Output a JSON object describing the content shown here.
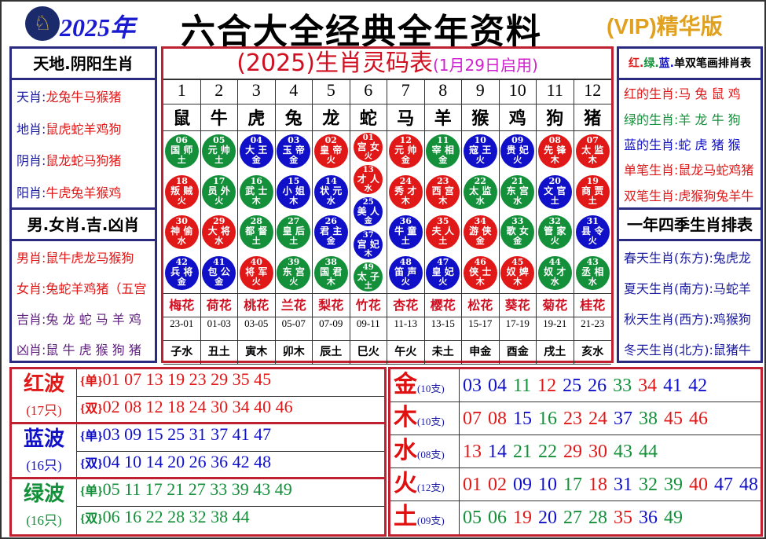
{
  "header": {
    "year": "2025年",
    "title": "六合大全经典全年资料",
    "vip": "(VIP)精华版",
    "logo_icon": "horse-emblem-icon"
  },
  "colors": {
    "red": "#e01818",
    "blue": "#1010c8",
    "green": "#14903a",
    "navy": "#1a1aa0",
    "purple": "#602080"
  },
  "left": {
    "h1": "天地.阴阳生肖",
    "rows1": [
      {
        "k": "天肖",
        "v": "龙兔牛马猴猪"
      },
      {
        "k": "地肖",
        "v": "鼠虎蛇羊鸡狗"
      },
      {
        "k": "阴肖",
        "v": "鼠龙蛇马狗猪"
      },
      {
        "k": "阳肖",
        "v": "牛虎兔羊猴鸡"
      }
    ],
    "h2": "男.女肖.吉.凶肖",
    "rows2": [
      {
        "k": "男肖",
        "v": "鼠牛虎龙马猴狗"
      },
      {
        "k": "女肖",
        "v": "兔蛇羊鸡猪（五宫"
      },
      {
        "k": "吉肖",
        "v": "兔 龙 蛇 马 羊 鸡"
      },
      {
        "k": "凶肖",
        "v": "鼠 牛 虎 猴 狗 猪"
      }
    ]
  },
  "right": {
    "h1": [
      "红",
      "绿",
      "蓝",
      "单双笔画排肖表"
    ],
    "rows1": [
      {
        "k": "红的生肖",
        "v": "马 兔 鼠 鸡",
        "c": "red"
      },
      {
        "k": "绿的生肖",
        "v": "羊 龙 牛 狗",
        "c": "green"
      },
      {
        "k": "蓝的生肖",
        "v": "蛇 虎 猪 猴",
        "c": "blue"
      },
      {
        "k": "单笔生肖",
        "v": "鼠龙马蛇鸡猪",
        "c": "red"
      },
      {
        "k": "双笔生肖",
        "v": "虎猴狗兔羊牛",
        "c": "red"
      }
    ],
    "h2": "一年四季生肖排表",
    "rows2": [
      {
        "k": "春天生肖(东方)",
        "v": "兔虎龙"
      },
      {
        "k": "夏天生肖(南方)",
        "v": "马蛇羊"
      },
      {
        "k": "秋天生肖(西方)",
        "v": "鸡猴狗"
      },
      {
        "k": "冬天生肖(北方)",
        "v": "鼠猪牛"
      }
    ]
  },
  "table": {
    "title": "(2025)生肖灵码表",
    "subtitle": "(1月29日启用)",
    "nums": [
      "1",
      "2",
      "3",
      "4",
      "5",
      "6",
      "7",
      "8",
      "9",
      "10",
      "11",
      "12"
    ],
    "zodiac": [
      "鼠",
      "牛",
      "虎",
      "兔",
      "龙",
      "蛇",
      "马",
      "羊",
      "猴",
      "鸡",
      "狗",
      "猪"
    ],
    "balls": [
      [
        [
          "06",
          "国 师",
          "土"
        ],
        [
          "18",
          "叛 贼",
          "火"
        ],
        [
          "30",
          "神 偷",
          "水"
        ],
        [
          "42",
          "兵 将",
          "金"
        ]
      ],
      [
        [
          "05",
          "元 帅",
          "土"
        ],
        [
          "17",
          "员 外",
          "火"
        ],
        [
          "29",
          "大 将",
          "水"
        ],
        [
          "41",
          "包 公",
          "金"
        ]
      ],
      [
        [
          "04",
          "大 王",
          "金"
        ],
        [
          "16",
          "武 士",
          "木"
        ],
        [
          "28",
          "都 督",
          "土"
        ],
        [
          "40",
          "将 军",
          "火"
        ]
      ],
      [
        [
          "03",
          "玉 帝",
          "金"
        ],
        [
          "15",
          "小 姐",
          "木"
        ],
        [
          "27",
          "皇 后",
          "土"
        ],
        [
          "39",
          "东 宫",
          "火"
        ]
      ],
      [
        [
          "02",
          "皇 帝",
          "火"
        ],
        [
          "14",
          "状 元",
          "水"
        ],
        [
          "26",
          "君 主",
          "金"
        ],
        [
          "38",
          "国 君",
          "木"
        ]
      ],
      [
        [
          "01",
          "宫 女",
          "火"
        ],
        [
          "13",
          "才 人",
          "水"
        ],
        [
          "25",
          "美 人",
          "金"
        ],
        [
          "37",
          "宫 妃",
          "木"
        ],
        [
          "49",
          "太 子",
          "土"
        ]
      ],
      [
        [
          "12",
          "元 帅",
          "金"
        ],
        [
          "24",
          "秀 才",
          "木"
        ],
        [
          "36",
          "牛 童",
          "土"
        ],
        [
          "48",
          "笛 声",
          "火"
        ]
      ],
      [
        [
          "11",
          "宰 相",
          "金"
        ],
        [
          "23",
          "西 宫",
          "木"
        ],
        [
          "35",
          "夫 人",
          "土"
        ],
        [
          "47",
          "皇 妃",
          "火"
        ]
      ],
      [
        [
          "10",
          "寇 王",
          "火"
        ],
        [
          "22",
          "太 监",
          "水"
        ],
        [
          "34",
          "游 侠",
          "金"
        ],
        [
          "46",
          "侠 士",
          "木"
        ]
      ],
      [
        [
          "09",
          "贵 妃",
          "火"
        ],
        [
          "21",
          "东 宫",
          "水"
        ],
        [
          "33",
          "歌 女",
          "金"
        ],
        [
          "45",
          "奴 婢",
          "木"
        ]
      ],
      [
        [
          "08",
          "先 锋",
          "木"
        ],
        [
          "20",
          "文 官",
          "土"
        ],
        [
          "32",
          "管 家",
          "火"
        ],
        [
          "44",
          "奴 才",
          "水"
        ]
      ],
      [
        [
          "07",
          "太 监",
          "木"
        ],
        [
          "19",
          "商 贾",
          "土"
        ],
        [
          "31",
          "县 令",
          "火"
        ],
        [
          "43",
          "丞 相",
          "水"
        ]
      ]
    ],
    "flowers": [
      "梅花",
      "荷花",
      "桃花",
      "兰花",
      "梨花",
      "竹花",
      "杏花",
      "樱花",
      "松花",
      "葵花",
      "菊花",
      "桂花"
    ],
    "hours": [
      "23-01",
      "01-03",
      "03-05",
      "05-07",
      "07-09",
      "09-11",
      "11-13",
      "13-15",
      "15-17",
      "17-19",
      "19-21",
      "21-23"
    ],
    "branches": [
      "子水",
      "丑土",
      "寅木",
      "卯木",
      "辰土",
      "巳火",
      "午火",
      "未土",
      "申金",
      "酉金",
      "戌土",
      "亥水"
    ]
  },
  "waves": [
    {
      "name": "红波",
      "count": "(17只)",
      "c": "red",
      "odd_tag": "{单}",
      "even_tag": "{双}",
      "odd": "01 07 13 19 23 29 35 45",
      "even": "02 08 12 18 24 30 34 40 46"
    },
    {
      "name": "蓝波",
      "count": "(16只)",
      "c": "blue",
      "odd_tag": "{单}",
      "even_tag": "{双}",
      "odd": "03 09 15 25 31 37 41 47",
      "even": "04 10 14 20 26 36 42 48"
    },
    {
      "name": "绿波",
      "count": "(16只)",
      "c": "green",
      "odd_tag": "{单}",
      "even_tag": "{双}",
      "odd": "05 11 17 21 27 33 39 43 49",
      "even": "06 16 22 28 32 38 44"
    }
  ],
  "elements": [
    {
      "name": "金",
      "count": "(10支)",
      "nums": "03 04 11 12 25 26 33 34 41 42"
    },
    {
      "name": "木",
      "count": "(10支)",
      "nums": "07 08 15 16 23 24 37 38 45 46"
    },
    {
      "name": "水",
      "count": "(08支)",
      "nums": "13 14 21 22 29 30 43 44"
    },
    {
      "name": "火",
      "count": "(12支)",
      "nums": "01 02 09 10 17 18 31 32 39 40 47 48"
    },
    {
      "name": "土",
      "count": "(09支)",
      "nums": "05 06 19 20 27 28 35 36 49"
    }
  ]
}
